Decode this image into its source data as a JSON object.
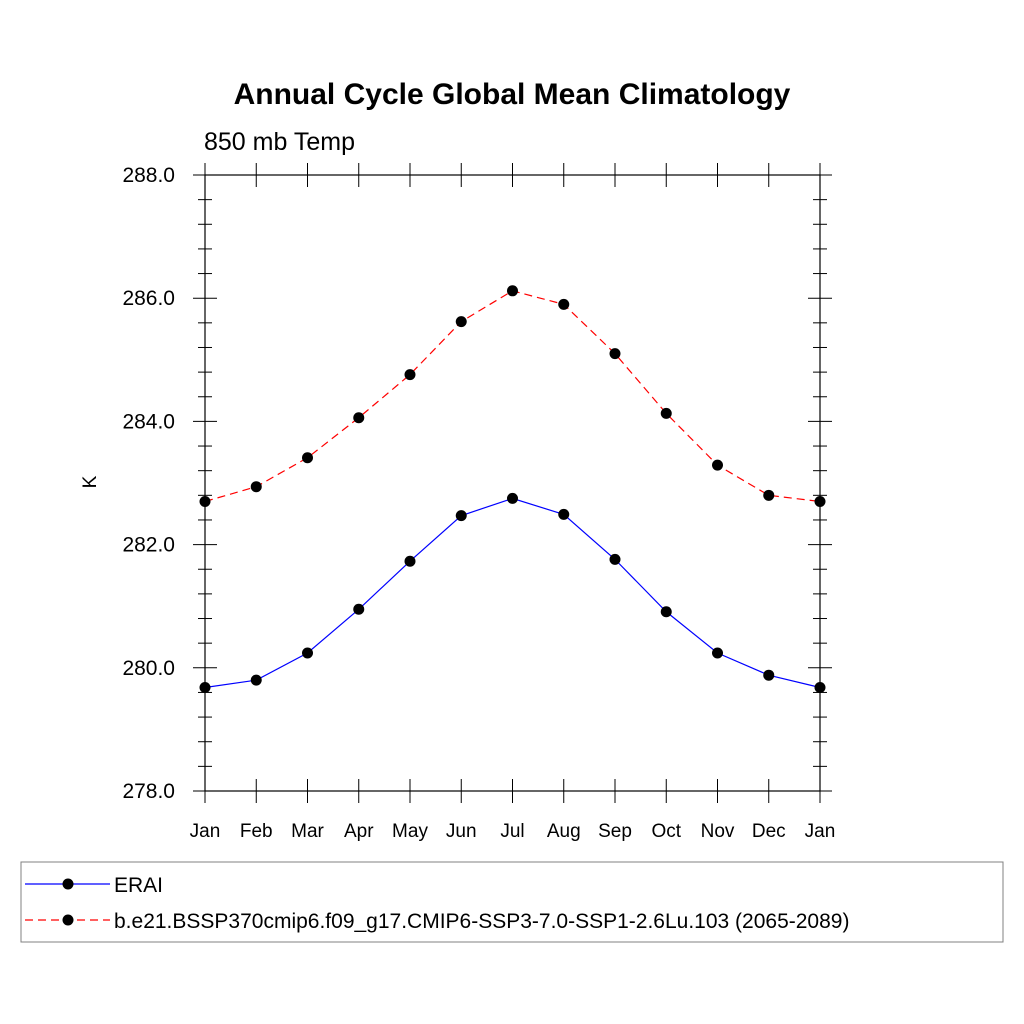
{
  "chart_data": {
    "type": "line",
    "title": "Annual Cycle Global Mean Climatology",
    "subtitle": "850 mb Temp",
    "ylabel": "K",
    "xlabel": "",
    "categories": [
      "Jan",
      "Feb",
      "Mar",
      "Apr",
      "May",
      "Jun",
      "Jul",
      "Aug",
      "Sep",
      "Oct",
      "Nov",
      "Dec",
      "Jan"
    ],
    "ylim": [
      278.0,
      288.0
    ],
    "yticks": [
      "278.0",
      "280.0",
      "282.0",
      "284.0",
      "286.0",
      "288.0"
    ],
    "grid": false,
    "legend_position": "bottom",
    "series": [
      {
        "name": "ERAI",
        "color": "#0000ff",
        "line_style": "solid",
        "marker": "filled-circle",
        "values": [
          279.68,
          279.8,
          280.24,
          280.95,
          281.73,
          282.47,
          282.75,
          282.49,
          281.76,
          280.91,
          280.24,
          279.88,
          279.68
        ]
      },
      {
        "name": "b.e21.BSSP370cmip6.f09_g17.CMIP6-SSP3-7.0-SSP1-2.6Lu.103 (2065-2089)",
        "color": "#ff0000",
        "line_style": "dashed",
        "marker": "filled-circle",
        "values": [
          282.7,
          282.94,
          283.41,
          284.06,
          284.76,
          285.62,
          286.12,
          285.9,
          285.1,
          284.13,
          283.29,
          282.8,
          282.7
        ]
      }
    ]
  }
}
